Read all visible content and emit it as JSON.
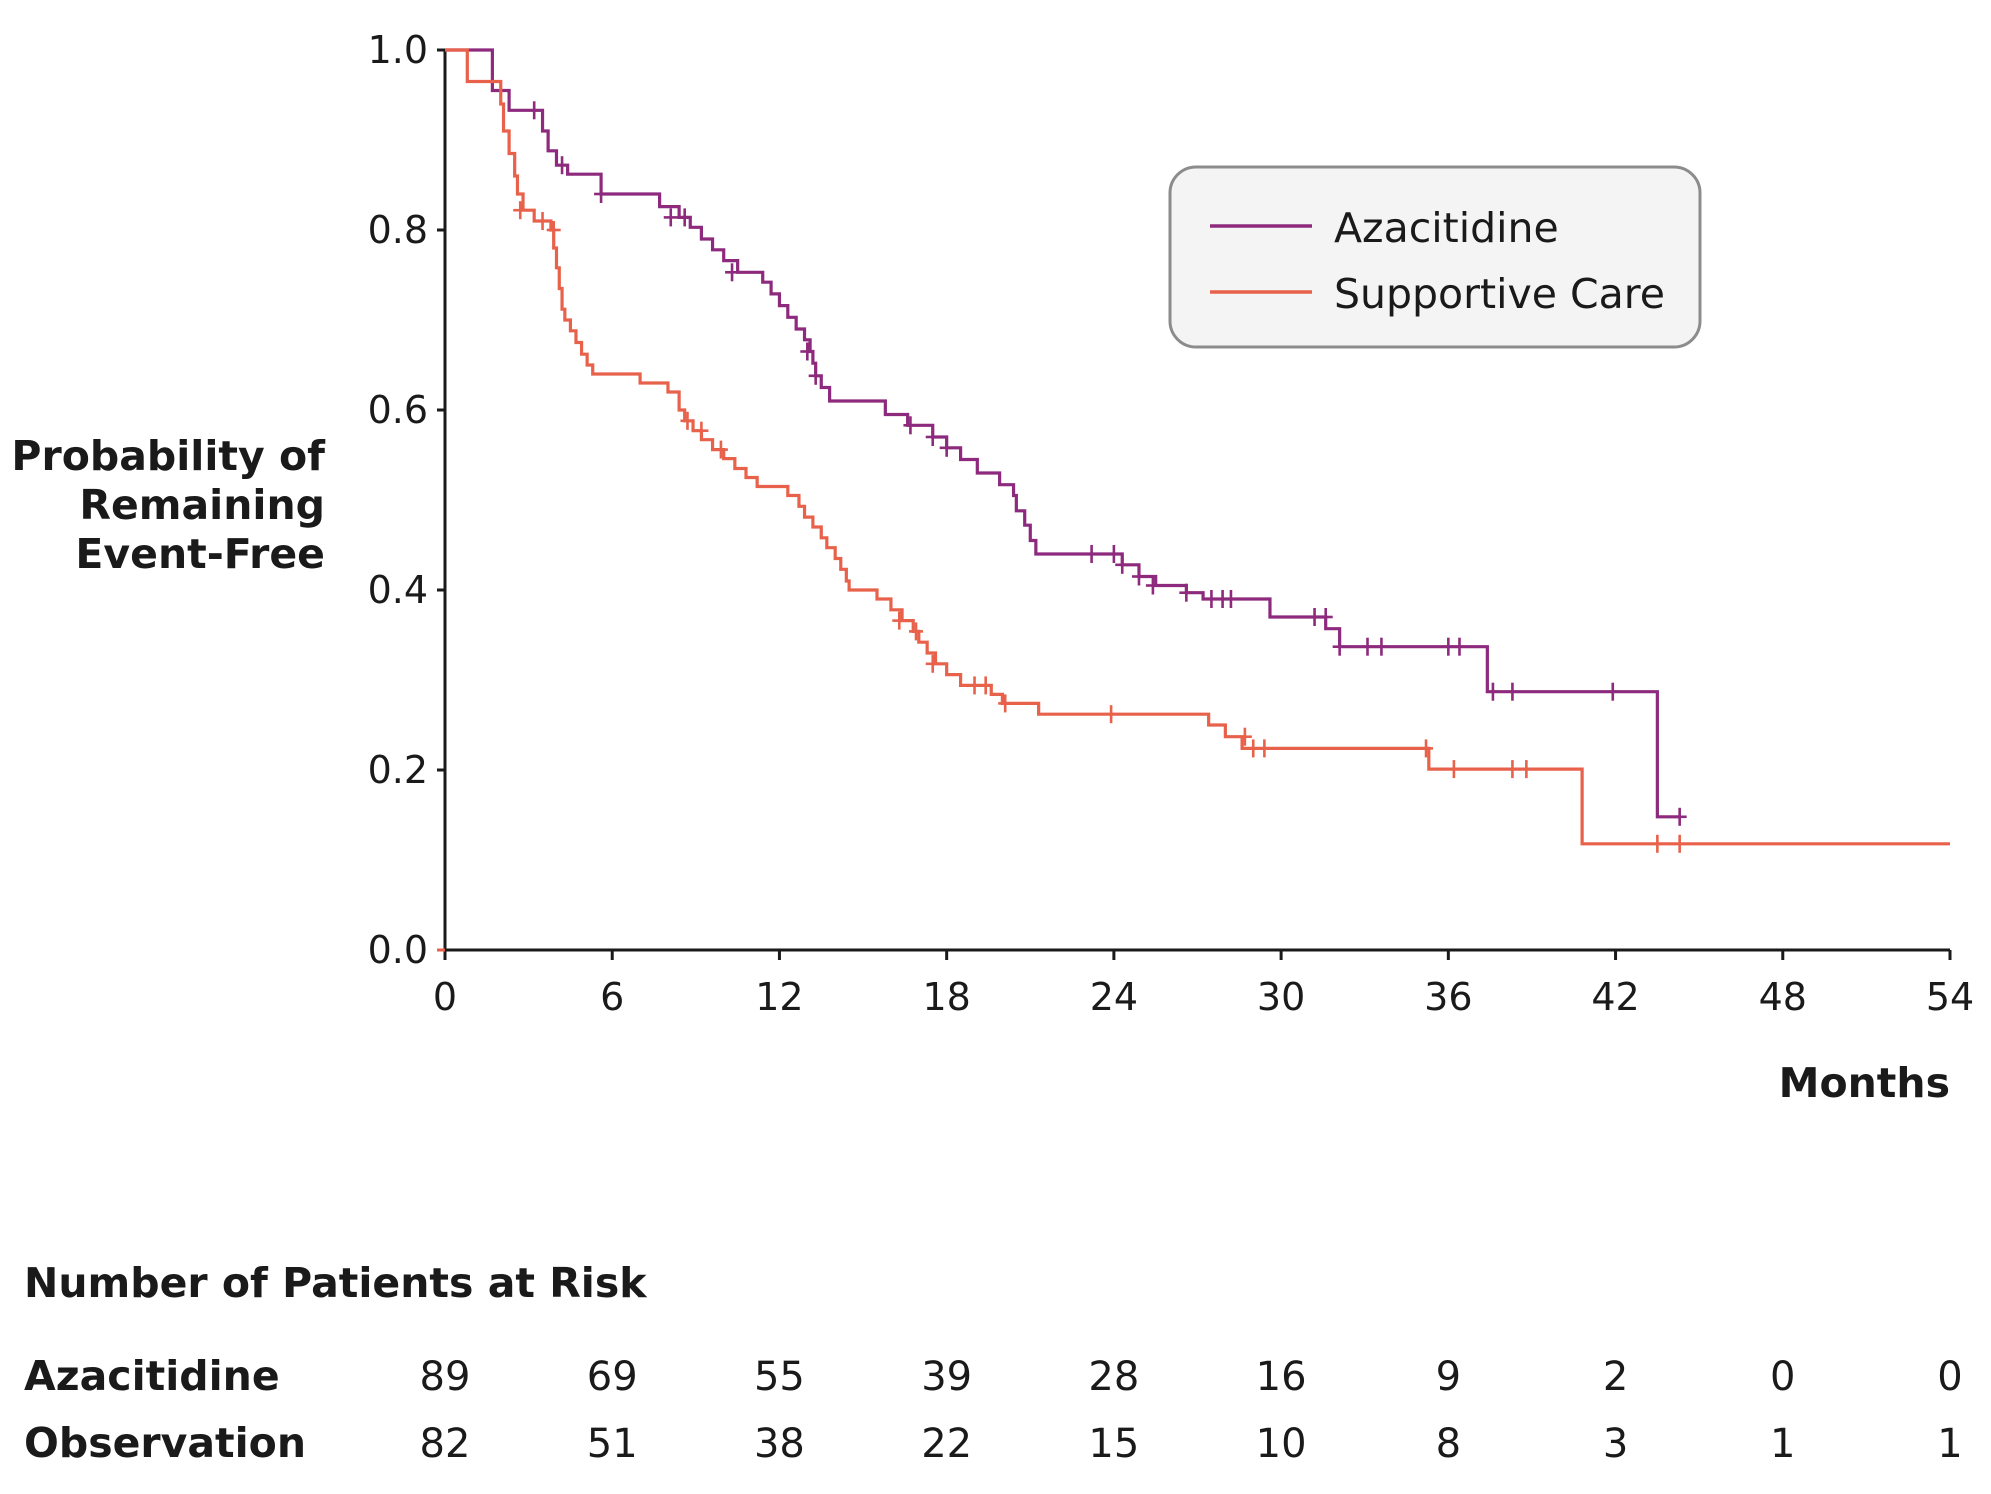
{
  "chart_data": {
    "type": "line",
    "subtype": "kaplan-meier",
    "title": "",
    "xlabel": "Months",
    "ylabel_lines": [
      "Probability of",
      "Remaining",
      "Event-Free"
    ],
    "xlim": [
      0,
      54
    ],
    "ylim": [
      0,
      1
    ],
    "xticks": [
      0,
      6,
      12,
      18,
      24,
      30,
      36,
      42,
      48,
      54
    ],
    "yticks": [
      "0.0",
      "0.2",
      "0.4",
      "0.6",
      "0.8",
      "1.0"
    ],
    "legend_position": "top-right",
    "series": [
      {
        "name": "Azacitidine",
        "color": "#8e2a7d",
        "steps": [
          [
            0,
            1.0
          ],
          [
            1.7,
            0.955
          ],
          [
            2.3,
            0.933
          ],
          [
            3.5,
            0.91
          ],
          [
            3.7,
            0.888
          ],
          [
            4.0,
            0.872
          ],
          [
            4.4,
            0.862
          ],
          [
            5.6,
            0.84
          ],
          [
            7.7,
            0.826
          ],
          [
            8.4,
            0.814
          ],
          [
            8.8,
            0.803
          ],
          [
            9.2,
            0.79
          ],
          [
            9.6,
            0.778
          ],
          [
            10.0,
            0.766
          ],
          [
            10.5,
            0.753
          ],
          [
            11.4,
            0.742
          ],
          [
            11.7,
            0.729
          ],
          [
            12.0,
            0.716
          ],
          [
            12.3,
            0.703
          ],
          [
            12.6,
            0.69
          ],
          [
            12.9,
            0.678
          ],
          [
            13.1,
            0.665
          ],
          [
            13.2,
            0.652
          ],
          [
            13.3,
            0.638
          ],
          [
            13.5,
            0.625
          ],
          [
            13.8,
            0.61
          ],
          [
            15.8,
            0.595
          ],
          [
            16.6,
            0.583
          ],
          [
            17.5,
            0.57
          ],
          [
            18.0,
            0.558
          ],
          [
            18.5,
            0.545
          ],
          [
            19.1,
            0.53
          ],
          [
            19.9,
            0.517
          ],
          [
            20.4,
            0.505
          ],
          [
            20.5,
            0.488
          ],
          [
            20.8,
            0.472
          ],
          [
            21.0,
            0.455
          ],
          [
            21.2,
            0.44
          ],
          [
            24.3,
            0.428
          ],
          [
            24.9,
            0.415
          ],
          [
            25.5,
            0.405
          ],
          [
            26.6,
            0.397
          ],
          [
            27.2,
            0.39
          ],
          [
            28.1,
            0.39
          ],
          [
            29.6,
            0.37
          ],
          [
            31.6,
            0.357
          ],
          [
            32.1,
            0.337
          ],
          [
            37.4,
            0.287
          ],
          [
            43.5,
            0.148
          ],
          [
            44.3,
            0.148
          ]
        ],
        "censors": [
          [
            3.2,
            0.933
          ],
          [
            4.2,
            0.872
          ],
          [
            5.6,
            0.84
          ],
          [
            8.1,
            0.814
          ],
          [
            8.6,
            0.814
          ],
          [
            10.3,
            0.753
          ],
          [
            13.0,
            0.665
          ],
          [
            13.3,
            0.638
          ],
          [
            16.7,
            0.583
          ],
          [
            17.5,
            0.57
          ],
          [
            18.0,
            0.558
          ],
          [
            23.2,
            0.44
          ],
          [
            24.0,
            0.44
          ],
          [
            24.3,
            0.428
          ],
          [
            24.9,
            0.415
          ],
          [
            25.4,
            0.405
          ],
          [
            26.6,
            0.397
          ],
          [
            27.5,
            0.39
          ],
          [
            27.9,
            0.39
          ],
          [
            28.2,
            0.39
          ],
          [
            31.2,
            0.37
          ],
          [
            31.6,
            0.37
          ],
          [
            32.1,
            0.337
          ],
          [
            33.1,
            0.337
          ],
          [
            33.6,
            0.337
          ],
          [
            36.0,
            0.337
          ],
          [
            36.4,
            0.337
          ],
          [
            37.6,
            0.287
          ],
          [
            38.3,
            0.287
          ],
          [
            41.9,
            0.287
          ],
          [
            44.3,
            0.148
          ]
        ]
      },
      {
        "name": "Supportive Care",
        "color": "#e8614a",
        "steps": [
          [
            0,
            1.0
          ],
          [
            0.8,
            0.965
          ],
          [
            2.0,
            0.94
          ],
          [
            2.1,
            0.91
          ],
          [
            2.3,
            0.885
          ],
          [
            2.5,
            0.86
          ],
          [
            2.6,
            0.84
          ],
          [
            2.8,
            0.822
          ],
          [
            3.2,
            0.81
          ],
          [
            3.8,
            0.8
          ],
          [
            3.9,
            0.78
          ],
          [
            4.0,
            0.758
          ],
          [
            4.1,
            0.735
          ],
          [
            4.2,
            0.712
          ],
          [
            4.3,
            0.7
          ],
          [
            4.5,
            0.688
          ],
          [
            4.7,
            0.675
          ],
          [
            4.9,
            0.662
          ],
          [
            5.1,
            0.65
          ],
          [
            5.3,
            0.64
          ],
          [
            7.0,
            0.63
          ],
          [
            8.0,
            0.62
          ],
          [
            8.4,
            0.6
          ],
          [
            8.6,
            0.588
          ],
          [
            8.9,
            0.577
          ],
          [
            9.2,
            0.567
          ],
          [
            9.6,
            0.556
          ],
          [
            10.0,
            0.546
          ],
          [
            10.4,
            0.535
          ],
          [
            10.8,
            0.525
          ],
          [
            11.2,
            0.515
          ],
          [
            12.3,
            0.505
          ],
          [
            12.7,
            0.493
          ],
          [
            12.9,
            0.481
          ],
          [
            13.2,
            0.47
          ],
          [
            13.5,
            0.458
          ],
          [
            13.7,
            0.447
          ],
          [
            14.0,
            0.435
          ],
          [
            14.2,
            0.423
          ],
          [
            14.4,
            0.41
          ],
          [
            14.5,
            0.4
          ],
          [
            15.5,
            0.39
          ],
          [
            16.0,
            0.378
          ],
          [
            16.4,
            0.366
          ],
          [
            16.8,
            0.354
          ],
          [
            17.0,
            0.342
          ],
          [
            17.3,
            0.33
          ],
          [
            17.6,
            0.318
          ],
          [
            18.0,
            0.306
          ],
          [
            18.5,
            0.294
          ],
          [
            19.6,
            0.284
          ],
          [
            20.0,
            0.274
          ],
          [
            21.3,
            0.262
          ],
          [
            27.4,
            0.25
          ],
          [
            28.0,
            0.237
          ],
          [
            28.6,
            0.224
          ],
          [
            35.3,
            0.201
          ],
          [
            40.8,
            0.118
          ],
          [
            54,
            0.118
          ]
        ],
        "censors": [
          [
            2.7,
            0.822
          ],
          [
            3.5,
            0.81
          ],
          [
            3.9,
            0.8
          ],
          [
            8.7,
            0.588
          ],
          [
            9.2,
            0.577
          ],
          [
            9.9,
            0.556
          ],
          [
            16.3,
            0.366
          ],
          [
            16.9,
            0.354
          ],
          [
            17.5,
            0.318
          ],
          [
            19.0,
            0.294
          ],
          [
            19.4,
            0.294
          ],
          [
            20.1,
            0.274
          ],
          [
            23.9,
            0.262
          ],
          [
            28.7,
            0.237
          ],
          [
            29.0,
            0.224
          ],
          [
            29.4,
            0.224
          ],
          [
            35.2,
            0.224
          ],
          [
            36.2,
            0.201
          ],
          [
            38.3,
            0.201
          ],
          [
            38.8,
            0.201
          ],
          [
            43.5,
            0.118
          ],
          [
            44.3,
            0.118
          ]
        ]
      }
    ]
  },
  "risk_table": {
    "title": "Number of Patients at Risk",
    "rows": [
      {
        "label": "Azacitidine",
        "values": [
          "89",
          "69",
          "55",
          "39",
          "28",
          "16",
          "9",
          "2",
          "0",
          "0"
        ]
      },
      {
        "label": "Observation",
        "values": [
          "82",
          "51",
          "38",
          "22",
          "15",
          "10",
          "8",
          "3",
          "1",
          "1"
        ]
      }
    ]
  }
}
